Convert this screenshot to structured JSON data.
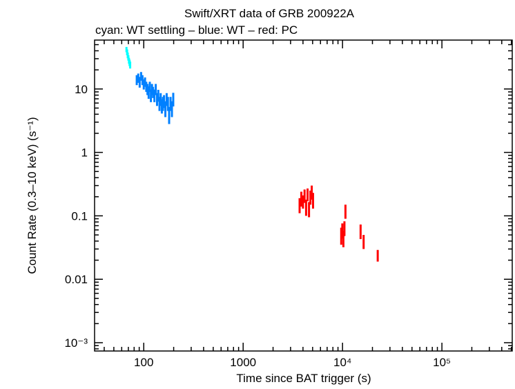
{
  "chart_data": {
    "type": "scatter",
    "title": "Swift/XRT data of GRB 200922A",
    "subtitle": "cyan: WT settling – blue: WT – red: PC",
    "xlabel": "Time since BAT trigger (s)",
    "ylabel": "Count Rate (0.3–10 keV) (s⁻¹)",
    "xscale": "log",
    "yscale": "log",
    "xlim": [
      32,
      510000
    ],
    "ylim": [
      0.00074,
      59
    ],
    "x_ticks": [
      {
        "v": 100,
        "label": "100"
      },
      {
        "v": 1000,
        "label": "1000"
      },
      {
        "v": 10000,
        "label": "10⁴"
      },
      {
        "v": 100000,
        "label": "10⁵"
      }
    ],
    "y_ticks": [
      {
        "v": 0.001,
        "label": "10⁻³"
      },
      {
        "v": 0.01,
        "label": "0.01"
      },
      {
        "v": 0.1,
        "label": "0.1"
      },
      {
        "v": 1,
        "label": "1"
      },
      {
        "v": 10,
        "label": "10"
      }
    ],
    "grid": false,
    "series": [
      {
        "name": "WT settling",
        "color": "#00ffff",
        "points": [
          [
            67,
            42,
            4
          ],
          [
            68,
            38,
            4
          ],
          [
            69,
            34,
            3.5
          ],
          [
            70,
            31,
            3
          ],
          [
            71,
            28,
            3
          ],
          [
            72,
            26,
            3
          ],
          [
            73,
            24,
            3
          ]
        ]
      },
      {
        "name": "WT",
        "color": "#0080ff",
        "points": [
          [
            85,
            14,
            2.5
          ],
          [
            88,
            15,
            2.5
          ],
          [
            91,
            13,
            2.5
          ],
          [
            94,
            16,
            2.5
          ],
          [
            97,
            14,
            2.5
          ],
          [
            100,
            12,
            2.2
          ],
          [
            103,
            13,
            2.2
          ],
          [
            106,
            11,
            2
          ],
          [
            109,
            10,
            2
          ],
          [
            112,
            9,
            2
          ],
          [
            115,
            11,
            2
          ],
          [
            118,
            8,
            1.8
          ],
          [
            121,
            10,
            2
          ],
          [
            124,
            9,
            1.8
          ],
          [
            128,
            8,
            1.8
          ],
          [
            132,
            10,
            2
          ],
          [
            136,
            7,
            1.6
          ],
          [
            140,
            8,
            1.7
          ],
          [
            144,
            6,
            1.5
          ],
          [
            148,
            7,
            1.6
          ],
          [
            152,
            5.5,
            1.4
          ],
          [
            156,
            6,
            1.5
          ],
          [
            160,
            6.5,
            1.5
          ],
          [
            165,
            5,
            1.4
          ],
          [
            170,
            7,
            1.6
          ],
          [
            175,
            6,
            1.5
          ],
          [
            180,
            4,
            1.2
          ],
          [
            186,
            6,
            1.5
          ],
          [
            192,
            5,
            1.4
          ],
          [
            198,
            7,
            1.7
          ]
        ]
      },
      {
        "name": "PC",
        "color": "#ff0000",
        "points": [
          [
            3700,
            0.15,
            0.04
          ],
          [
            3850,
            0.19,
            0.05
          ],
          [
            4000,
            0.17,
            0.04
          ],
          [
            4150,
            0.21,
            0.05
          ],
          [
            4300,
            0.14,
            0.04
          ],
          [
            4450,
            0.22,
            0.05
          ],
          [
            4600,
            0.13,
            0.035
          ],
          [
            4750,
            0.2,
            0.05
          ],
          [
            4900,
            0.24,
            0.06
          ],
          [
            5050,
            0.18,
            0.05
          ],
          [
            9700,
            0.05,
            0.015
          ],
          [
            9950,
            0.06,
            0.016
          ],
          [
            10200,
            0.045,
            0.013
          ],
          [
            10450,
            0.065,
            0.017
          ],
          [
            10700,
            0.12,
            0.03
          ],
          [
            15200,
            0.058,
            0.015
          ],
          [
            16300,
            0.04,
            0.01
          ],
          [
            22600,
            0.024,
            0.005
          ]
        ]
      }
    ]
  }
}
